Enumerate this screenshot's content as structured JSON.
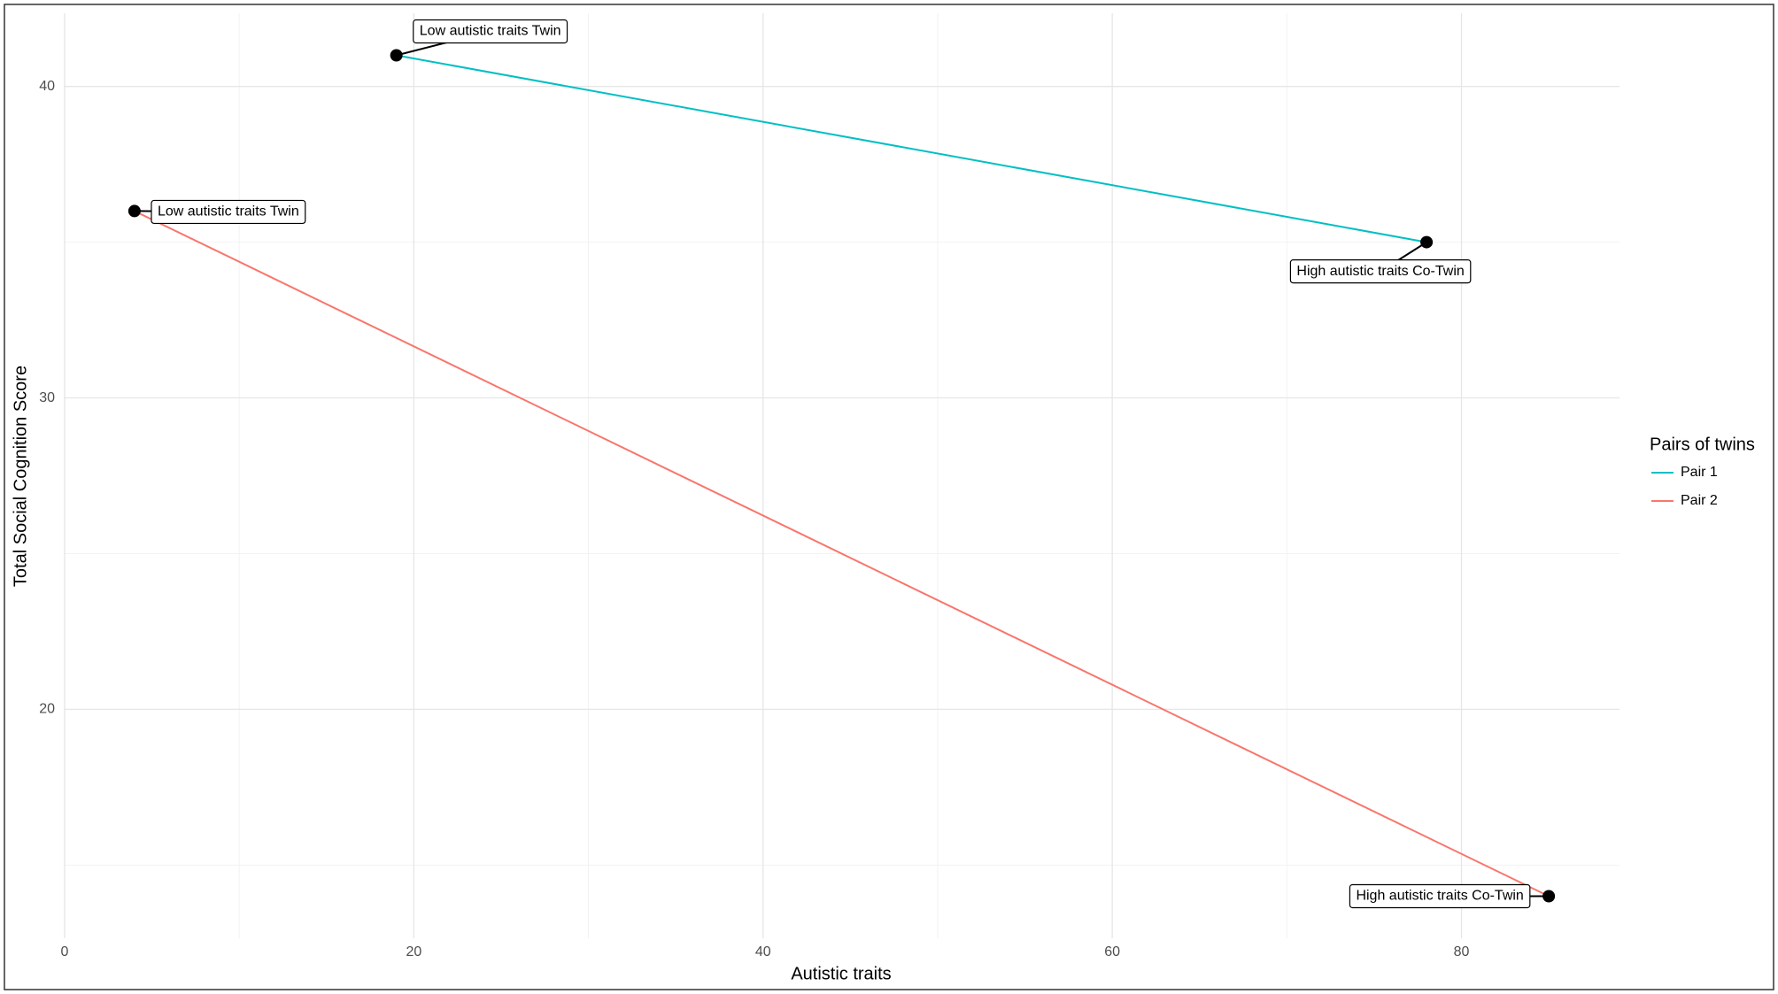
{
  "chart_data": {
    "type": "line",
    "xlabel": "Autistic traits",
    "ylabel": "Total Social Cognition Score",
    "legend_title": "Pairs of twins",
    "legend": "right",
    "series": [
      {
        "name": "Pair 1",
        "color": "#00BFC4",
        "x": [
          19,
          78
        ],
        "values": [
          41,
          35
        ],
        "labels": [
          "Low autistic traits Twin",
          "High autistic traits Co-Twin"
        ]
      },
      {
        "name": "Pair 2",
        "color": "#F8766D",
        "x": [
          4,
          85
        ],
        "values": [
          36,
          14
        ],
        "labels": [
          "Low autistic traits Twin",
          "High autistic traits Co-Twin"
        ]
      }
    ],
    "xlim": [
      -0.05,
      89.05
    ],
    "xticks": [
      0,
      20,
      40,
      60,
      80
    ],
    "xminor": [
      10,
      30,
      50,
      70
    ],
    "ylim": [
      12.65,
      42.35
    ],
    "yticks": [
      20,
      30,
      40
    ],
    "yminor": [
      15,
      25,
      35
    ],
    "grid": true
  }
}
